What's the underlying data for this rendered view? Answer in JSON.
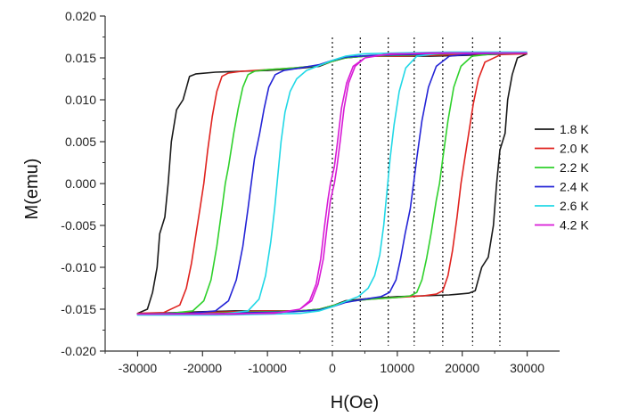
{
  "chart_data": {
    "type": "line",
    "xlabel": "H(Oe)",
    "ylabel": "M(emu)",
    "xlim": [
      -35000,
      35000
    ],
    "ylim": [
      -0.02,
      0.02
    ],
    "x_ticks": [
      -30000,
      -20000,
      -10000,
      0,
      10000,
      20000,
      30000
    ],
    "x_tick_labels": [
      "-30000",
      "-20000",
      "-10000",
      "0",
      "10000",
      "20000",
      "30000"
    ],
    "y_ticks": [
      -0.02,
      -0.015,
      -0.01,
      -0.005,
      0.0,
      0.005,
      0.01,
      0.015,
      0.02
    ],
    "y_tick_labels": [
      "-0.020",
      "-0.015",
      "-0.010",
      "-0.005",
      "0.000",
      "0.005",
      "0.010",
      "0.015",
      "0.020"
    ],
    "grid": false,
    "legend_position": "right",
    "vertical_reference_lines": [
      0,
      4300,
      8600,
      12600,
      17000,
      21600,
      25800
    ],
    "series": [
      {
        "name": "1.8 K",
        "color": "#1a1a1a",
        "descending": [
          [
            30000,
            0.0155
          ],
          [
            27000,
            0.0155
          ],
          [
            24000,
            0.0154
          ],
          [
            20000,
            0.0153
          ],
          [
            15000,
            0.0152
          ],
          [
            10000,
            0.0152
          ],
          [
            5000,
            0.0152
          ],
          [
            2000,
            0.015
          ],
          [
            0,
            0.0146
          ],
          [
            -2000,
            0.014
          ],
          [
            -6000,
            0.0137
          ],
          [
            -10000,
            0.0135
          ],
          [
            -14000,
            0.0134
          ],
          [
            -18000,
            0.0133
          ],
          [
            -21000,
            0.0131
          ],
          [
            -22000,
            0.0128
          ],
          [
            -22500,
            0.0114
          ],
          [
            -23000,
            0.01
          ],
          [
            -24000,
            0.0088
          ],
          [
            -24800,
            0.005
          ],
          [
            -25300,
            0.0
          ],
          [
            -25800,
            -0.004
          ],
          [
            -26600,
            -0.006
          ],
          [
            -27000,
            -0.01
          ],
          [
            -27700,
            -0.013
          ],
          [
            -28500,
            -0.015
          ],
          [
            -30000,
            -0.0155
          ]
        ],
        "ascending": [
          [
            -30000,
            -0.0155
          ],
          [
            -27000,
            -0.0155
          ],
          [
            -24000,
            -0.0154
          ],
          [
            -20000,
            -0.0153
          ],
          [
            -15000,
            -0.0152
          ],
          [
            -10000,
            -0.0152
          ],
          [
            -5000,
            -0.0152
          ],
          [
            -2000,
            -0.015
          ],
          [
            0,
            -0.0146
          ],
          [
            2000,
            -0.014
          ],
          [
            6000,
            -0.0137
          ],
          [
            10000,
            -0.0135
          ],
          [
            14000,
            -0.0134
          ],
          [
            18000,
            -0.0133
          ],
          [
            21000,
            -0.0131
          ],
          [
            22000,
            -0.0128
          ],
          [
            22500,
            -0.0114
          ],
          [
            23000,
            -0.01
          ],
          [
            24000,
            -0.0088
          ],
          [
            24800,
            -0.005
          ],
          [
            25300,
            0.0
          ],
          [
            25800,
            0.004
          ],
          [
            26600,
            0.006
          ],
          [
            27000,
            0.01
          ],
          [
            27700,
            0.013
          ],
          [
            28500,
            0.015
          ],
          [
            30000,
            0.0155
          ]
        ]
      },
      {
        "name": "2.0 K",
        "color": "#e0231f",
        "descending": [
          [
            30000,
            0.0155
          ],
          [
            25000,
            0.0155
          ],
          [
            20000,
            0.0154
          ],
          [
            15000,
            0.0153
          ],
          [
            10000,
            0.0152
          ],
          [
            5000,
            0.0152
          ],
          [
            2000,
            0.015
          ],
          [
            0,
            0.0146
          ],
          [
            -2000,
            0.0141
          ],
          [
            -6000,
            0.0138
          ],
          [
            -10000,
            0.0136
          ],
          [
            -14000,
            0.0134
          ],
          [
            -16000,
            0.0132
          ],
          [
            -17000,
            0.0128
          ],
          [
            -17800,
            0.011
          ],
          [
            -18500,
            0.008
          ],
          [
            -19200,
            0.004
          ],
          [
            -19800,
            0.0
          ],
          [
            -20400,
            -0.003
          ],
          [
            -21000,
            -0.006
          ],
          [
            -21700,
            -0.0095
          ],
          [
            -22500,
            -0.0125
          ],
          [
            -23500,
            -0.0145
          ],
          [
            -26000,
            -0.0154
          ],
          [
            -30000,
            -0.0155
          ]
        ],
        "ascending": [
          [
            -30000,
            -0.0155
          ],
          [
            -25000,
            -0.0155
          ],
          [
            -20000,
            -0.0154
          ],
          [
            -15000,
            -0.0153
          ],
          [
            -10000,
            -0.0152
          ],
          [
            -5000,
            -0.0152
          ],
          [
            -2000,
            -0.015
          ],
          [
            0,
            -0.0146
          ],
          [
            2000,
            -0.0141
          ],
          [
            6000,
            -0.0138
          ],
          [
            10000,
            -0.0136
          ],
          [
            14000,
            -0.0134
          ],
          [
            16000,
            -0.0132
          ],
          [
            17000,
            -0.0128
          ],
          [
            17800,
            -0.011
          ],
          [
            18500,
            -0.008
          ],
          [
            19200,
            -0.004
          ],
          [
            19800,
            0.0
          ],
          [
            20400,
            0.003
          ],
          [
            21000,
            0.006
          ],
          [
            21700,
            0.0095
          ],
          [
            22500,
            0.0125
          ],
          [
            23500,
            0.0145
          ],
          [
            26000,
            0.0154
          ],
          [
            30000,
            0.0155
          ]
        ]
      },
      {
        "name": "2.2 K",
        "color": "#2fd12c",
        "descending": [
          [
            30000,
            0.0156
          ],
          [
            22000,
            0.0156
          ],
          [
            15000,
            0.0154
          ],
          [
            10000,
            0.0153
          ],
          [
            5000,
            0.0152
          ],
          [
            2000,
            0.015
          ],
          [
            0,
            0.0146
          ],
          [
            -2000,
            0.0141
          ],
          [
            -6000,
            0.0138
          ],
          [
            -10000,
            0.0136
          ],
          [
            -12000,
            0.0134
          ],
          [
            -13000,
            0.013
          ],
          [
            -13800,
            0.0115
          ],
          [
            -14500,
            0.009
          ],
          [
            -15200,
            0.006
          ],
          [
            -16000,
            0.002
          ],
          [
            -16500,
            0.0
          ],
          [
            -17000,
            -0.003
          ],
          [
            -17800,
            -0.0075
          ],
          [
            -18700,
            -0.0115
          ],
          [
            -19800,
            -0.014
          ],
          [
            -21500,
            -0.0152
          ],
          [
            -25000,
            -0.0155
          ],
          [
            -30000,
            -0.0156
          ]
        ],
        "ascending": [
          [
            -30000,
            -0.0156
          ],
          [
            -22000,
            -0.0156
          ],
          [
            -15000,
            -0.0154
          ],
          [
            -10000,
            -0.0153
          ],
          [
            -5000,
            -0.0152
          ],
          [
            -2000,
            -0.015
          ],
          [
            0,
            -0.0146
          ],
          [
            2000,
            -0.0141
          ],
          [
            6000,
            -0.0138
          ],
          [
            10000,
            -0.0136
          ],
          [
            12000,
            -0.0134
          ],
          [
            13000,
            -0.013
          ],
          [
            13800,
            -0.0115
          ],
          [
            14500,
            -0.009
          ],
          [
            15200,
            -0.006
          ],
          [
            16000,
            -0.002
          ],
          [
            16500,
            0.0
          ],
          [
            17000,
            0.003
          ],
          [
            17800,
            0.0075
          ],
          [
            18700,
            0.0115
          ],
          [
            19800,
            0.014
          ],
          [
            21500,
            0.0152
          ],
          [
            25000,
            0.0155
          ],
          [
            30000,
            0.0156
          ]
        ]
      },
      {
        "name": "2.4 K",
        "color": "#2424d6",
        "descending": [
          [
            30000,
            0.0156
          ],
          [
            20000,
            0.0156
          ],
          [
            12000,
            0.0154
          ],
          [
            6000,
            0.0153
          ],
          [
            2000,
            0.0151
          ],
          [
            0,
            0.0147
          ],
          [
            -2000,
            0.0142
          ],
          [
            -5000,
            0.0138
          ],
          [
            -7500,
            0.0135
          ],
          [
            -8800,
            0.013
          ],
          [
            -9800,
            0.0115
          ],
          [
            -10500,
            0.009
          ],
          [
            -11200,
            0.006
          ],
          [
            -12000,
            0.003
          ],
          [
            -12500,
            0.0
          ],
          [
            -13000,
            -0.003
          ],
          [
            -13800,
            -0.0075
          ],
          [
            -14800,
            -0.0115
          ],
          [
            -16000,
            -0.014
          ],
          [
            -18000,
            -0.0152
          ],
          [
            -22000,
            -0.0155
          ],
          [
            -30000,
            -0.0156
          ]
        ],
        "ascending": [
          [
            -30000,
            -0.0156
          ],
          [
            -20000,
            -0.0156
          ],
          [
            -12000,
            -0.0154
          ],
          [
            -6000,
            -0.0153
          ],
          [
            -2000,
            -0.0151
          ],
          [
            0,
            -0.0147
          ],
          [
            2000,
            -0.0142
          ],
          [
            5000,
            -0.0138
          ],
          [
            7500,
            -0.0135
          ],
          [
            8800,
            -0.013
          ],
          [
            9800,
            -0.0115
          ],
          [
            10500,
            -0.009
          ],
          [
            11200,
            -0.006
          ],
          [
            12000,
            -0.003
          ],
          [
            12500,
            0.0
          ],
          [
            13000,
            0.003
          ],
          [
            13800,
            0.0075
          ],
          [
            14800,
            0.0115
          ],
          [
            16000,
            0.014
          ],
          [
            18000,
            0.0152
          ],
          [
            22000,
            0.0155
          ],
          [
            30000,
            0.0156
          ]
        ]
      },
      {
        "name": "2.6 K",
        "color": "#22d8e6",
        "descending": [
          [
            30000,
            0.0157
          ],
          [
            18000,
            0.0157
          ],
          [
            10000,
            0.0156
          ],
          [
            5000,
            0.0155
          ],
          [
            2000,
            0.0152
          ],
          [
            0,
            0.0147
          ],
          [
            -2000,
            0.0141
          ],
          [
            -4000,
            0.0135
          ],
          [
            -5500,
            0.0125
          ],
          [
            -6500,
            0.011
          ],
          [
            -7300,
            0.0085
          ],
          [
            -7900,
            0.005
          ],
          [
            -8400,
            0.001
          ],
          [
            -8900,
            -0.003
          ],
          [
            -9500,
            -0.007
          ],
          [
            -10300,
            -0.011
          ],
          [
            -11300,
            -0.0138
          ],
          [
            -13000,
            -0.0152
          ],
          [
            -17000,
            -0.0156
          ],
          [
            -30000,
            -0.0157
          ]
        ],
        "ascending": [
          [
            -30000,
            -0.0157
          ],
          [
            -18000,
            -0.0157
          ],
          [
            -10000,
            -0.0156
          ],
          [
            -5000,
            -0.0155
          ],
          [
            -2000,
            -0.0152
          ],
          [
            0,
            -0.0147
          ],
          [
            2000,
            -0.0141
          ],
          [
            4000,
            -0.0135
          ],
          [
            5500,
            -0.0125
          ],
          [
            6500,
            -0.011
          ],
          [
            7300,
            -0.0085
          ],
          [
            7900,
            -0.005
          ],
          [
            8400,
            -0.001
          ],
          [
            8900,
            0.003
          ],
          [
            9500,
            0.007
          ],
          [
            10300,
            0.011
          ],
          [
            11300,
            0.0138
          ],
          [
            13000,
            0.0152
          ],
          [
            17000,
            0.0156
          ],
          [
            30000,
            0.0157
          ]
        ]
      },
      {
        "name": "4.2 K",
        "color": "#d81ad6",
        "descending": [
          [
            30000,
            0.0156
          ],
          [
            15000,
            0.0156
          ],
          [
            8000,
            0.0154
          ],
          [
            5000,
            0.015
          ],
          [
            3500,
            0.014
          ],
          [
            2500,
            0.012
          ],
          [
            1800,
            0.009
          ],
          [
            1200,
            0.005
          ],
          [
            700,
            0.002
          ],
          [
            300,
            0.0
          ],
          [
            -300,
            -0.002
          ],
          [
            -800,
            -0.005
          ],
          [
            -1400,
            -0.009
          ],
          [
            -2200,
            -0.012
          ],
          [
            -3200,
            -0.014
          ],
          [
            -5000,
            -0.015
          ],
          [
            -9000,
            -0.0155
          ],
          [
            -30000,
            -0.0156
          ]
        ],
        "ascending": [
          [
            -30000,
            -0.0156
          ],
          [
            -15000,
            -0.0156
          ],
          [
            -8000,
            -0.0154
          ],
          [
            -5000,
            -0.015
          ],
          [
            -3500,
            -0.014
          ],
          [
            -2500,
            -0.012
          ],
          [
            -1800,
            -0.009
          ],
          [
            -1200,
            -0.005
          ],
          [
            -700,
            -0.002
          ],
          [
            -300,
            0.0
          ],
          [
            300,
            0.002
          ],
          [
            800,
            0.005
          ],
          [
            1400,
            0.009
          ],
          [
            2200,
            0.012
          ],
          [
            3200,
            0.014
          ],
          [
            5000,
            0.015
          ],
          [
            9000,
            0.0155
          ],
          [
            30000,
            0.0156
          ]
        ]
      }
    ]
  }
}
